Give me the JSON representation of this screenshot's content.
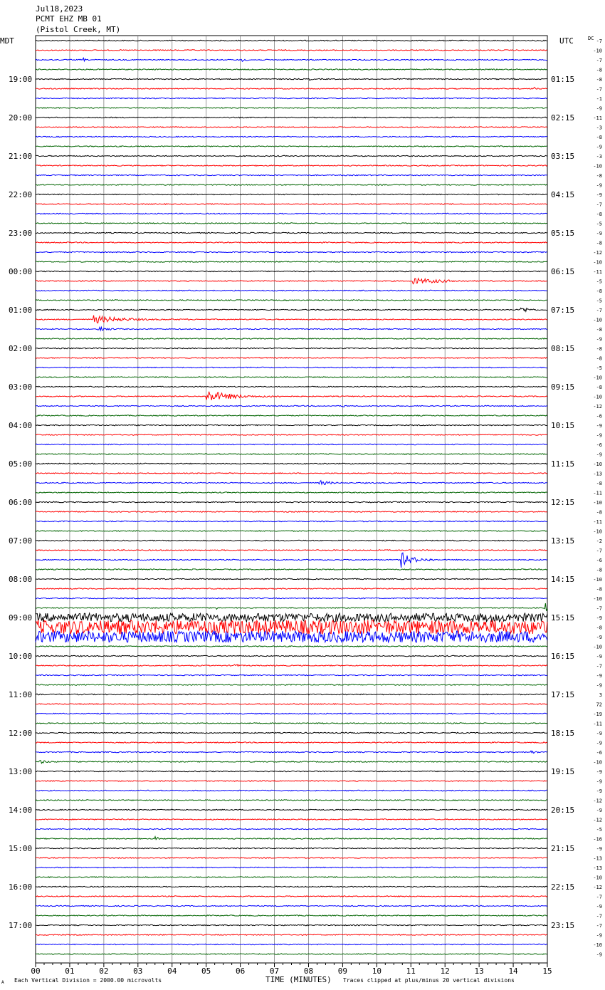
{
  "header": {
    "date": "Jul18,2023",
    "station": "PCMT EHZ MB 01",
    "location": "(Pistol Creek, MT)",
    "left_tz": "MDT",
    "right_tz": "UTC",
    "dc_label": "DC"
  },
  "footer": {
    "xlabel": "TIME (MINUTES)",
    "left_note": "Each Vertical Division = 2000.00 microvolts",
    "right_note": "Traces clipped at plus/minus 20 vertical divisions",
    "corner_mark": "A"
  },
  "chart_data": {
    "type": "line",
    "xlim": [
      0,
      15
    ],
    "x_ticks": [
      "00",
      "01",
      "02",
      "03",
      "04",
      "05",
      "06",
      "07",
      "08",
      "09",
      "10",
      "11",
      "12",
      "13",
      "14",
      "15"
    ],
    "trace_colors": [
      "#000000",
      "#ff0000",
      "#0000ff",
      "#006400"
    ],
    "grid": true,
    "rows_per_hour": 4,
    "left_hour_labels": [
      "19:00",
      "20:00",
      "21:00",
      "22:00",
      "23:00",
      "00:00",
      "01:00",
      "02:00",
      "03:00",
      "04:00",
      "05:00",
      "06:00",
      "07:00",
      "08:00",
      "09:00",
      "10:00",
      "11:00",
      "12:00",
      "13:00",
      "14:00",
      "15:00",
      "16:00",
      "17:00"
    ],
    "right_hour_labels": [
      "01:15",
      "02:15",
      "03:15",
      "04:15",
      "05:15",
      "06:15",
      "07:15",
      "08:15",
      "09:15",
      "10:15",
      "11:15",
      "12:15",
      "13:15",
      "14:15",
      "15:15",
      "16:15",
      "17:15",
      "18:15",
      "19:15",
      "20:15",
      "21:15",
      "22:15",
      "23:15"
    ],
    "dc_offsets": [
      "-7",
      "-10",
      "-7",
      "-8",
      "-8",
      "-7",
      "-1",
      "-9",
      "-11",
      "-3",
      "-8",
      "-9",
      "-3",
      "-10",
      "-8",
      "-9",
      "-9",
      "-7",
      "-8",
      "-5",
      "-9",
      "-8",
      "-12",
      "-10",
      "-11",
      "-5",
      "-8",
      "-5",
      "-7",
      "-10",
      "-8",
      "-9",
      "-8",
      "-8",
      "-5",
      "-10",
      "-8",
      "-10",
      "-12",
      "-6",
      "-9",
      "-9",
      "-6",
      "-9",
      "-10",
      "-13",
      "-8",
      "-11",
      "-10",
      "-8",
      "-11",
      "-10",
      "-2",
      "-7",
      "-6",
      "-8",
      "-10",
      "-8",
      "-10",
      "-7",
      "-9",
      "-8",
      "-9",
      "-10",
      "-9",
      "-7",
      "-9",
      "-9",
      "3",
      "72",
      "-19",
      "-11",
      "-9",
      "-9",
      "-6",
      "-10",
      "-9",
      "-9",
      "-9",
      "-12",
      "-9",
      "-12",
      "-5",
      "-16",
      "-9",
      "-13",
      "-13",
      "-10",
      "-12",
      "-7",
      "-9",
      "-7",
      "-7",
      "-9",
      "-10",
      "-9"
    ],
    "events": [
      {
        "row": 2,
        "minute": 6.05,
        "amp": 7,
        "dur": 0.2
      },
      {
        "row": 2,
        "minute": 1.4,
        "amp": 3,
        "dur": 0.2
      },
      {
        "row": 4,
        "minute": 6.9,
        "amp": 3,
        "dur": 0.2
      },
      {
        "row": 4,
        "minute": 8.0,
        "amp": 3,
        "dur": 0.3
      },
      {
        "row": 4,
        "minute": 14.0,
        "amp": 3,
        "dur": 0.2
      },
      {
        "row": 5,
        "minute": 14.6,
        "amp": 3,
        "dur": 0.3
      },
      {
        "row": 25,
        "minute": 11.0,
        "amp": 5,
        "dur": 3.0
      },
      {
        "row": 28,
        "minute": 14.2,
        "amp": 5,
        "dur": 0.9
      },
      {
        "row": 29,
        "minute": 1.7,
        "amp": 6,
        "dur": 2.8
      },
      {
        "row": 30,
        "minute": 1.8,
        "amp": 5,
        "dur": 0.9
      },
      {
        "row": 37,
        "minute": 5.0,
        "amp": 9,
        "dur": 2.2
      },
      {
        "row": 38,
        "minute": 9.0,
        "amp": 3,
        "dur": 0.3
      },
      {
        "row": 46,
        "minute": 8.3,
        "amp": 4,
        "dur": 1.2
      },
      {
        "row": 48,
        "minute": 0.5,
        "amp": 3,
        "dur": 0.2
      },
      {
        "row": 48,
        "minute": 2.9,
        "amp": 3,
        "dur": 0.2
      },
      {
        "row": 54,
        "minute": 10.7,
        "amp": 12,
        "dur": 1.0
      },
      {
        "row": 59,
        "minute": 5.3,
        "amp": 4,
        "dur": 0.2
      },
      {
        "row": 59,
        "minute": 14.9,
        "amp": 14,
        "dur": 0.2
      },
      {
        "row": 60,
        "minute": 0.0,
        "amp": 6,
        "dur": 15.0
      },
      {
        "row": 61,
        "minute": 0.0,
        "amp": 10,
        "dur": 15.0
      },
      {
        "row": 62,
        "minute": 0.0,
        "amp": 8,
        "dur": 15.0
      },
      {
        "row": 65,
        "minute": 5.8,
        "amp": 3,
        "dur": 0.6
      },
      {
        "row": 74,
        "minute": 14.5,
        "amp": 3,
        "dur": 0.6
      },
      {
        "row": 75,
        "minute": 0.1,
        "amp": 3,
        "dur": 1.0
      },
      {
        "row": 82,
        "minute": 1.5,
        "amp": 3,
        "dur": 0.4
      },
      {
        "row": 83,
        "minute": 3.5,
        "amp": 3,
        "dur": 0.6
      }
    ]
  }
}
